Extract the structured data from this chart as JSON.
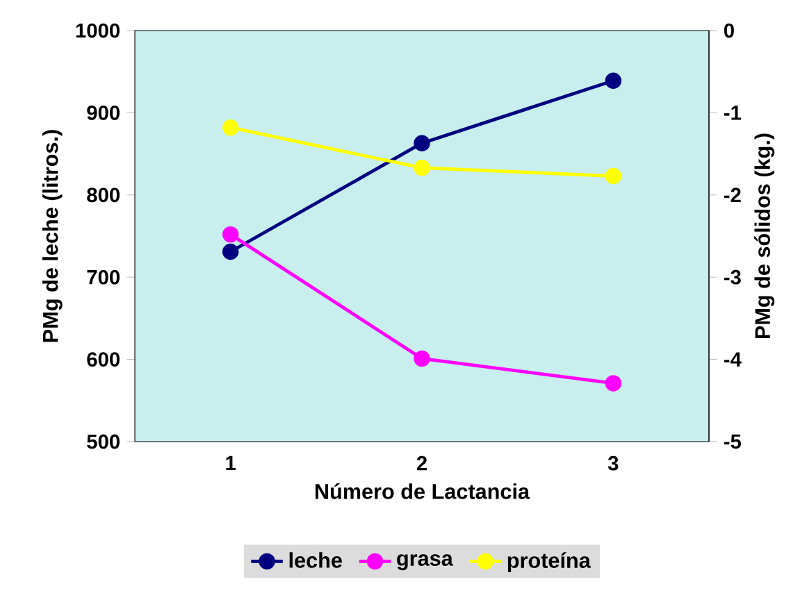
{
  "chart_data": {
    "type": "line",
    "categories": [
      "1",
      "2",
      "3"
    ],
    "xlabel": "Número de Lactancia",
    "ylabel": "PMg de leche (litros.)",
    "y2label": "PMg de sólidos (kg.)",
    "ylim": [
      500,
      1000
    ],
    "yticks": [
      500,
      600,
      700,
      800,
      900,
      1000
    ],
    "y2lim": [
      -5,
      0
    ],
    "y2ticks": [
      -5,
      -4,
      -3,
      -2,
      -1,
      0
    ],
    "series": [
      {
        "name": "leche",
        "color": "#000080",
        "values": [
          731,
          863,
          939
        ]
      },
      {
        "name": "grasa",
        "color": "#ff00ff",
        "values": [
          -2.48,
          -3.99,
          -4.29
        ],
        "axis": "y2"
      },
      {
        "name": "proteína",
        "color": "#ffff00",
        "values": [
          -1.18,
          -1.67,
          -1.77
        ],
        "axis": "y2"
      }
    ],
    "legend": "bottom",
    "marker": "circle"
  }
}
